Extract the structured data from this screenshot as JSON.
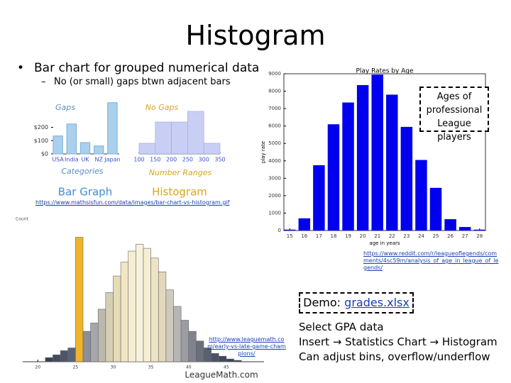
{
  "title": "Histogram",
  "bullets": {
    "main": "Bar chart for grouped numerical data",
    "sub": "No (or small) gaps btwn adjacent bars"
  },
  "links": [
    "https://www.mathsisfun.com/data/images/bar-chart-vs-histogram.gif",
    "https://www.reddit.com/r/leagueoflegends/comments/4sc59m/analysis_of_age_in_league_of_legends/",
    "http://www.leaguemath.com/early-vs-late-game-champions/"
  ],
  "callout": "Ages of professional League players",
  "demo": {
    "label": "Demo:",
    "file": "grades.xlsx"
  },
  "steps": {
    "first": "Select GPA data",
    "second": [
      "Insert",
      "Statistics Chart",
      "Histogram"
    ],
    "third": "Can adjust bins, overflow/underflow"
  },
  "chart_data": [
    {
      "type": "bar",
      "title": "Play Rates by Age",
      "xlabel": "age in years",
      "ylabel": "play rate",
      "x": [
        15,
        16,
        17,
        18,
        19,
        20,
        21,
        22,
        23,
        24,
        25,
        26,
        27,
        28
      ],
      "values": [
        50,
        700,
        3750,
        6100,
        7350,
        8350,
        8950,
        7800,
        5950,
        4050,
        2450,
        650,
        200,
        50
      ],
      "color": "#0000ee",
      "xlim": [
        14.6,
        28.4
      ],
      "ylim": [
        0,
        9000
      ],
      "xticks": [
        15,
        16,
        17,
        18,
        19,
        20,
        21,
        22,
        23,
        24,
        25,
        26,
        27,
        28
      ],
      "yticks": [
        0,
        1000,
        2000,
        3000,
        4000,
        5000,
        6000,
        7000,
        8000,
        9000
      ]
    },
    {
      "type": "bar",
      "title": "Bar Graph",
      "categories": [
        "USA",
        "India",
        "UK",
        "NZ",
        "Japan"
      ],
      "values": [
        135,
        225,
        85,
        60,
        385
      ],
      "color": "#a9d0ec",
      "ylim": [
        0,
        400
      ],
      "yticks": [
        {
          "value": 0,
          "label": "$0"
        },
        {
          "value": 100,
          "label": "$100"
        },
        {
          "value": 200,
          "label": "$200"
        }
      ],
      "annotations": [
        "Gaps",
        "Categories"
      ]
    },
    {
      "type": "histogram",
      "title": "Histogram",
      "bins": [
        100,
        150,
        200,
        250,
        300,
        350
      ],
      "counts": [
        1,
        3,
        3,
        4,
        1
      ],
      "color": "#c9cff4",
      "ylim": [
        0,
        5
      ],
      "xticks": [
        100,
        150,
        200,
        250,
        300,
        350
      ],
      "annotations": [
        "No Gaps",
        "Number Ranges"
      ]
    },
    {
      "type": "histogram",
      "ylabel": "Count",
      "logo": "LeagueMath.com",
      "bins": [
        21,
        22,
        23,
        24,
        25,
        26,
        27,
        28,
        29,
        30,
        31,
        32,
        33,
        34,
        35,
        36,
        37,
        38,
        39,
        40,
        41,
        42,
        43,
        44,
        45,
        46,
        47
      ],
      "counts": [
        3,
        5,
        8,
        10,
        90,
        22,
        28,
        38,
        50,
        62,
        72,
        80,
        85,
        82,
        75,
        65,
        52,
        40,
        30,
        22,
        15,
        10,
        6,
        4,
        2,
        1
      ],
      "colors": [
        "#3a4156",
        "#444b60",
        "#4d556a",
        "#5a6276",
        "#f0b429",
        "#8a8f99",
        "#a4a7ab",
        "#bcb8ac",
        "#d6cfb5",
        "#e8dcb6",
        "#f1e6c4",
        "#f6eed3",
        "#f8f2dd",
        "#f6eed3",
        "#eee4c5",
        "#e2d9bd",
        "#cfcabd",
        "#b6b6b5",
        "#9b9da3",
        "#7f838d",
        "#6a6f7b",
        "#596070",
        "#4b5265",
        "#41485c",
        "#3a4156",
        "#343b50"
      ],
      "xlim": [
        18,
        50
      ],
      "ylim": [
        0,
        100
      ],
      "xticks": [
        20,
        25,
        30,
        35,
        40,
        45
      ]
    }
  ]
}
